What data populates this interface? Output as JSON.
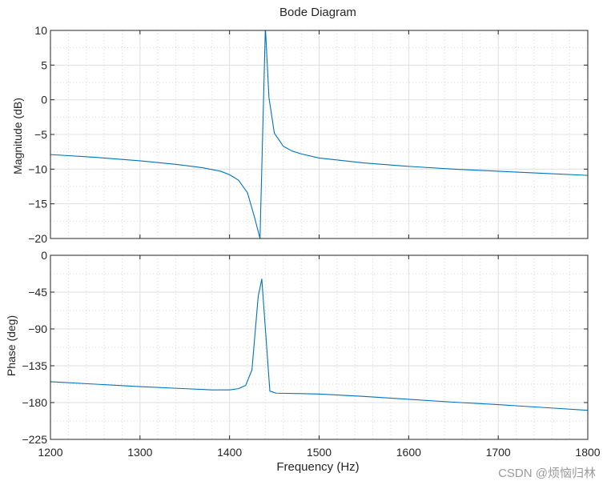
{
  "chart_data": {
    "type": "line",
    "title": "Bode Diagram",
    "xlabel": "Frequency  (Hz)",
    "xlim": [
      1200,
      1800
    ],
    "xticks": [
      1200,
      1300,
      1400,
      1500,
      1600,
      1700,
      1800
    ],
    "grid": true,
    "line_color": "#0072BD",
    "panels": [
      {
        "name": "magnitude",
        "ylabel": "Magnitude (dB)",
        "ylim": [
          -20,
          10
        ],
        "yticks": [
          10,
          5,
          0,
          -5,
          -10,
          -15,
          -20
        ],
        "x": [
          1200,
          1250,
          1300,
          1340,
          1370,
          1390,
          1400,
          1410,
          1420,
          1428,
          1434,
          1440,
          1444,
          1450,
          1460,
          1470,
          1480,
          1500,
          1550,
          1600,
          1650,
          1700,
          1750,
          1800
        ],
        "y": [
          -7.9,
          -8.3,
          -8.8,
          -9.3,
          -9.8,
          -10.3,
          -10.8,
          -11.6,
          -13.4,
          -17.0,
          -20.0,
          10.5,
          0.3,
          -4.8,
          -6.7,
          -7.4,
          -7.8,
          -8.4,
          -9.1,
          -9.6,
          -10.0,
          -10.3,
          -10.6,
          -10.9
        ]
      },
      {
        "name": "phase",
        "ylabel": "Phase (deg)",
        "ylim": [
          -225,
          0
        ],
        "yticks": [
          0,
          -45,
          -90,
          -135,
          -180,
          -225
        ],
        "x": [
          1200,
          1250,
          1300,
          1350,
          1380,
          1400,
          1410,
          1418,
          1425,
          1432,
          1436,
          1440,
          1445,
          1452,
          1500,
          1550,
          1600,
          1650,
          1700,
          1750,
          1800
        ],
        "y": [
          -154.5,
          -157.5,
          -160.5,
          -163.0,
          -164.5,
          -164.5,
          -163.0,
          -159.0,
          -140.0,
          -50.0,
          -29.0,
          -90.0,
          -166.0,
          -168.5,
          -169.5,
          -172.5,
          -176.0,
          -179.5,
          -182.5,
          -186.0,
          -189.5
        ]
      }
    ]
  },
  "watermark": "CSDN @烦恼归林"
}
